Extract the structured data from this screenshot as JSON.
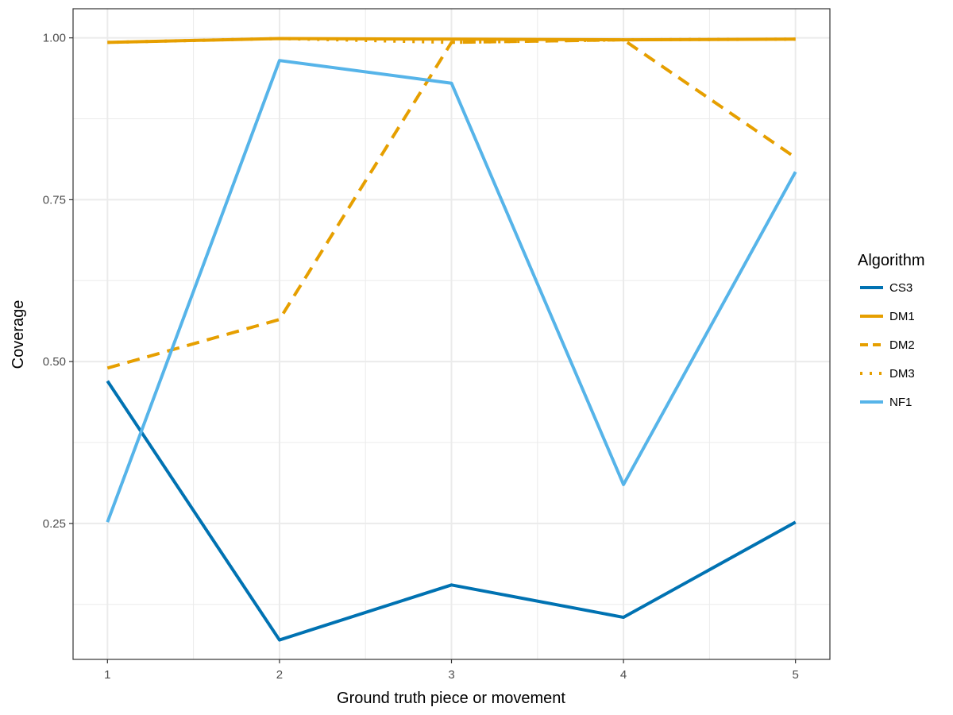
{
  "chart_data": {
    "type": "line",
    "xlabel": "Ground truth piece or movement",
    "ylabel": "Coverage",
    "x": [
      1,
      2,
      3,
      4,
      5
    ],
    "xlim": [
      0.8,
      5.2
    ],
    "ylim": [
      0.04,
      1.045
    ],
    "x_ticks": [
      1,
      2,
      3,
      4,
      5
    ],
    "x_tick_labels": [
      "1",
      "2",
      "3",
      "4",
      "5"
    ],
    "y_ticks": [
      0.25,
      0.5,
      0.75,
      1.0
    ],
    "y_tick_labels": [
      "0.25",
      "0.50",
      "0.75",
      "1.00"
    ],
    "grid": true,
    "legend_position": "right",
    "legend_title": "Algorithm",
    "series": [
      {
        "name": "CS3",
        "values": [
          0.47,
          0.07,
          0.155,
          0.105,
          0.252
        ],
        "color": "#0072B2",
        "dash": "solid"
      },
      {
        "name": "DM1",
        "values": [
          0.993,
          0.999,
          0.998,
          0.997,
          0.998
        ],
        "color": "#E69F00",
        "dash": "solid"
      },
      {
        "name": "DM2",
        "values": [
          0.49,
          0.565,
          0.993,
          0.997,
          0.815
        ],
        "color": "#E69F00",
        "dash": "dashed"
      },
      {
        "name": "DM3",
        "values": [
          0.993,
          0.999,
          0.993,
          0.997,
          0.998
        ],
        "color": "#E69F00",
        "dash": "dotted"
      },
      {
        "name": "NF1",
        "values": [
          0.252,
          0.965,
          0.93,
          0.31,
          0.793
        ],
        "color": "#56B4E9",
        "dash": "solid"
      }
    ]
  }
}
